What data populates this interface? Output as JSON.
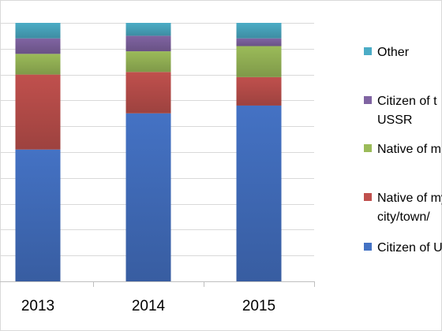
{
  "chart_data": {
    "type": "bar",
    "stacked": true,
    "categories": [
      "2013",
      "2014",
      "2015"
    ],
    "ylim": [
      0,
      100
    ],
    "grid": true,
    "legend_position": "right",
    "series": [
      {
        "name": "Citizen of U",
        "color": "#4472C4",
        "values": [
          51,
          65,
          68
        ]
      },
      {
        "name": "Native of my\ncity/town/",
        "color": "#C0504D",
        "values": [
          29,
          16,
          11
        ]
      },
      {
        "name": "Native of m",
        "color": "#9BBB59",
        "values": [
          8,
          8,
          12
        ]
      },
      {
        "name": "Citizen of t\nUSSR",
        "color": "#8064A2",
        "values": [
          6,
          6,
          3
        ]
      },
      {
        "name": "Other",
        "color": "#4BACC6",
        "values": [
          6,
          5,
          6
        ]
      }
    ]
  }
}
